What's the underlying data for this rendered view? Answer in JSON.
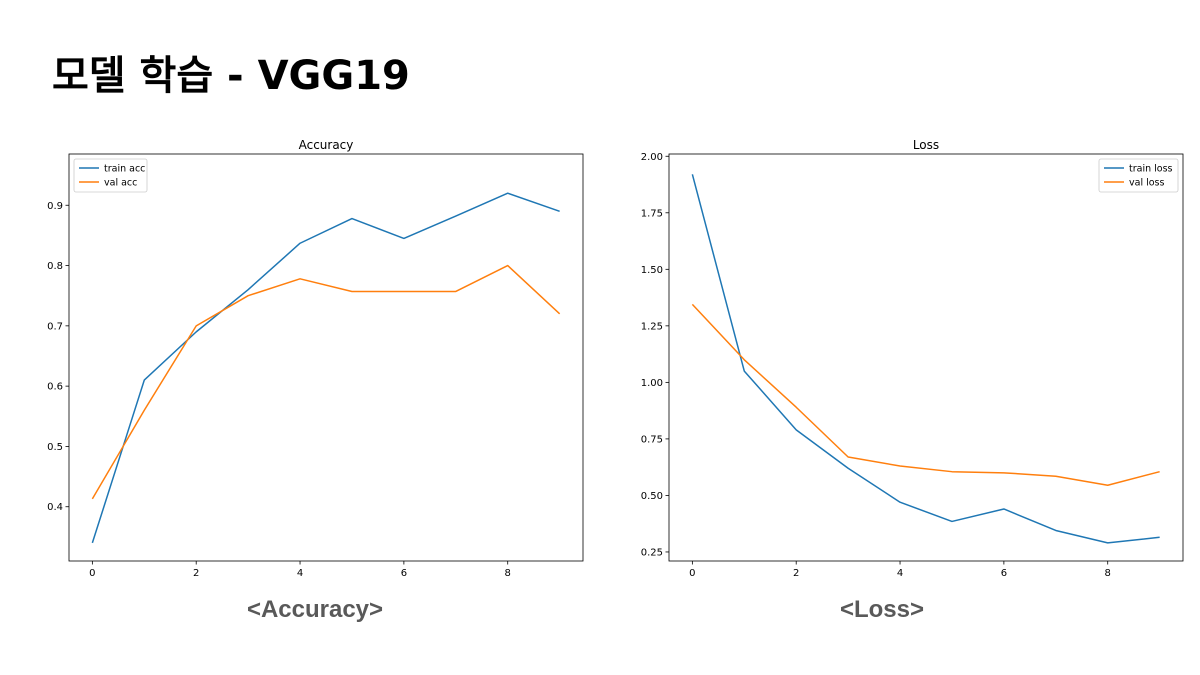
{
  "slide": {
    "title": "모델 학습 - VGG19",
    "captions": [
      "<Accuracy>",
      "<Loss>"
    ]
  },
  "chart_data": [
    {
      "type": "line",
      "title": "Accuracy",
      "xlabel": "",
      "ylabel": "",
      "x": [
        0,
        1,
        2,
        3,
        4,
        5,
        6,
        7,
        8,
        9
      ],
      "xlim": [
        -0.45,
        9.45
      ],
      "ylim": [
        0.31,
        0.985
      ],
      "xticks": [
        0,
        2,
        4,
        6,
        8
      ],
      "yticks": [
        0.4,
        0.5,
        0.6,
        0.7,
        0.8,
        0.9
      ],
      "ytick_decimals": 1,
      "grid": false,
      "legend": "top-left",
      "series": [
        {
          "name": "train acc",
          "color": "#1f77b4",
          "values": [
            0.34,
            0.61,
            0.69,
            0.76,
            0.837,
            0.878,
            0.845,
            0.882,
            0.92,
            0.89
          ]
        },
        {
          "name": "val acc",
          "color": "#ff7f0e",
          "values": [
            0.413,
            0.56,
            0.7,
            0.75,
            0.778,
            0.757,
            0.757,
            0.757,
            0.8,
            0.72
          ]
        }
      ]
    },
    {
      "type": "line",
      "title": "Loss",
      "xlabel": "",
      "ylabel": "",
      "x": [
        0,
        1,
        2,
        3,
        4,
        5,
        6,
        7,
        8,
        9
      ],
      "xlim": [
        -0.45,
        9.45
      ],
      "ylim": [
        0.21,
        2.01
      ],
      "xticks": [
        0,
        2,
        4,
        6,
        8
      ],
      "yticks": [
        0.25,
        0.5,
        0.75,
        1.0,
        1.25,
        1.5,
        1.75,
        2.0
      ],
      "ytick_decimals": 2,
      "grid": false,
      "legend": "top-right",
      "series": [
        {
          "name": "train loss",
          "color": "#1f77b4",
          "values": [
            1.92,
            1.05,
            0.79,
            0.62,
            0.47,
            0.385,
            0.44,
            0.345,
            0.29,
            0.315
          ]
        },
        {
          "name": "val loss",
          "color": "#ff7f0e",
          "values": [
            1.345,
            1.1,
            0.89,
            0.67,
            0.63,
            0.605,
            0.6,
            0.585,
            0.545,
            0.605
          ]
        }
      ]
    }
  ]
}
